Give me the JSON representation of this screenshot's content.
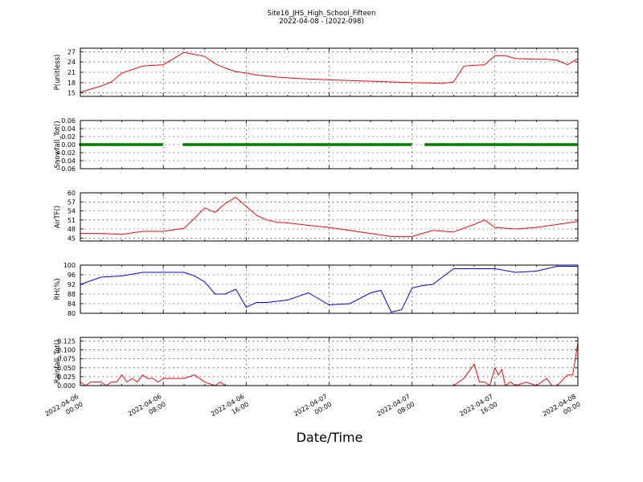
{
  "figure": {
    "title": "Site16_JHS_High_School_Fifteen",
    "subtitle": "2022-04-08 - (2022-098)",
    "xlabel": "Date/Time"
  },
  "chart_data": {
    "type": "line",
    "grid": true,
    "x_range": [
      "2022-04-06 00:00",
      "2022-04-08 00:00"
    ],
    "x_ticks": [
      {
        "value": "2022-04-06 00:00",
        "label": [
          "2022-04-06",
          "00:00"
        ]
      },
      {
        "value": "2022-04-06 08:00",
        "label": [
          "2022-04-06",
          "08:00"
        ]
      },
      {
        "value": "2022-04-06 16:00",
        "label": [
          "2022-04-06",
          "16:00"
        ]
      },
      {
        "value": "2022-04-07 00:00",
        "label": [
          "2022-04-07",
          "00:00"
        ]
      },
      {
        "value": "2022-04-07 08:00",
        "label": [
          "2022-04-07",
          "08:00"
        ]
      },
      {
        "value": "2022-04-07 16:00",
        "label": [
          "2022-04-07",
          "16:00"
        ]
      },
      {
        "value": "2022-04-08 00:00",
        "label": [
          "2022-04-08",
          "00:00"
        ]
      }
    ],
    "panels": [
      {
        "ylabel": "P(unitless)",
        "ylim": [
          14,
          28
        ],
        "yticks": [
          15,
          18,
          21,
          24,
          27
        ],
        "ytick_labels": [
          "15",
          "18",
          "21",
          "24",
          "27"
        ],
        "color": "#ff0000",
        "style": "line",
        "x": [
          "2022-04-06 00:00",
          "2022-04-06 02:00",
          "2022-04-06 03:00",
          "2022-04-06 04:00",
          "2022-04-06 05:00",
          "2022-04-06 06:00",
          "2022-04-06 07:00",
          "2022-04-06 08:00",
          "2022-04-06 09:00",
          "2022-04-06 10:00",
          "2022-04-06 11:00",
          "2022-04-06 12:00",
          "2022-04-06 13:00",
          "2022-04-06 14:00",
          "2022-04-06 15:00",
          "2022-04-06 16:00",
          "2022-04-06 17:00",
          "2022-04-06 19:00",
          "2022-04-06 21:00",
          "2022-04-07 00:00",
          "2022-04-07 04:00",
          "2022-04-07 08:00",
          "2022-04-07 11:00",
          "2022-04-07 12:00",
          "2022-04-07 13:00",
          "2022-04-07 14:00",
          "2022-04-07 15:00",
          "2022-04-07 16:00",
          "2022-04-07 17:00",
          "2022-04-07 18:00",
          "2022-04-07 20:00",
          "2022-04-07 21:00",
          "2022-04-07 22:00",
          "2022-04-07 23:00",
          "2022-04-08 00:00"
        ],
        "y": [
          15.2,
          17.0,
          18.2,
          20.8,
          21.8,
          22.8,
          23.0,
          23.2,
          25.0,
          26.8,
          26.2,
          25.6,
          23.5,
          22.2,
          21.2,
          20.8,
          20.2,
          19.6,
          19.2,
          18.8,
          18.4,
          18.0,
          17.8,
          18.2,
          22.8,
          23.0,
          23.2,
          25.8,
          25.8,
          25.0,
          24.8,
          24.8,
          24.5,
          23.2,
          25.0
        ]
      },
      {
        "ylabel": "Snowfall_Tot()",
        "ylim": [
          -0.06,
          0.06
        ],
        "yticks": [
          -0.06,
          -0.04,
          -0.02,
          0.0,
          0.02,
          0.04,
          0.06
        ],
        "ytick_labels": [
          "−0.06",
          "−0.04",
          "−0.02",
          "0.00",
          "0.02",
          "0.04",
          "0.06"
        ],
        "color": "#008000",
        "style": "dots",
        "segments": [
          {
            "x_start": "2022-04-06 00:00",
            "x_end": "2022-04-06 08:00",
            "y": 0.0
          },
          {
            "x_start": "2022-04-06 10:00",
            "x_end": "2022-04-07 08:00",
            "y": 0.0
          },
          {
            "x_start": "2022-04-07 09:20",
            "x_end": "2022-04-08 00:00",
            "y": 0.0
          }
        ]
      },
      {
        "ylabel": "AirTF()",
        "ylim": [
          44,
          60
        ],
        "yticks": [
          45,
          48,
          51,
          54,
          57,
          60
        ],
        "ytick_labels": [
          "45",
          "48",
          "51",
          "54",
          "57",
          "60"
        ],
        "color": "#ff0000",
        "style": "line",
        "x": [
          "2022-04-06 00:00",
          "2022-04-06 02:00",
          "2022-04-06 04:00",
          "2022-04-06 06:00",
          "2022-04-06 08:00",
          "2022-04-06 10:00",
          "2022-04-06 11:00",
          "2022-04-06 12:00",
          "2022-04-06 13:00",
          "2022-04-06 14:00",
          "2022-04-06 15:00",
          "2022-04-06 16:00",
          "2022-04-06 17:00",
          "2022-04-06 18:00",
          "2022-04-06 19:00",
          "2022-04-06 20:00",
          "2022-04-06 22:00",
          "2022-04-07 00:00",
          "2022-04-07 02:00",
          "2022-04-07 04:00",
          "2022-04-07 06:00",
          "2022-04-07 08:00",
          "2022-04-07 10:00",
          "2022-04-07 12:00",
          "2022-04-07 14:00",
          "2022-04-07 15:00",
          "2022-04-07 16:00",
          "2022-04-07 18:00",
          "2022-04-07 20:00",
          "2022-04-07 22:00",
          "2022-04-08 00:00"
        ],
        "y": [
          46.5,
          46.5,
          46.2,
          47.2,
          47.2,
          48.2,
          51.5,
          55.0,
          53.5,
          56.5,
          58.5,
          55.5,
          52.5,
          51.0,
          50.2,
          50.0,
          49.2,
          48.5,
          47.5,
          46.5,
          45.5,
          45.5,
          47.5,
          47.0,
          49.5,
          51.0,
          48.5,
          48.0,
          48.5,
          49.5,
          50.5
        ]
      },
      {
        "ylabel": "RH(%)",
        "ylim": [
          80,
          100
        ],
        "yticks": [
          80,
          84,
          88,
          92,
          96,
          100
        ],
        "ytick_labels": [
          "80",
          "84",
          "88",
          "92",
          "96",
          "100"
        ],
        "color": "#0000ff",
        "style": "line",
        "x": [
          "2022-04-06 00:00",
          "2022-04-06 02:00",
          "2022-04-06 04:00",
          "2022-04-06 06:00",
          "2022-04-06 08:00",
          "2022-04-06 10:00",
          "2022-04-06 11:00",
          "2022-04-06 12:00",
          "2022-04-06 13:00",
          "2022-04-06 14:00",
          "2022-04-06 15:00",
          "2022-04-06 16:00",
          "2022-04-06 17:00",
          "2022-04-06 18:00",
          "2022-04-06 20:00",
          "2022-04-06 22:00",
          "2022-04-07 00:00",
          "2022-04-07 02:00",
          "2022-04-07 04:00",
          "2022-04-07 05:00",
          "2022-04-07 06:00",
          "2022-04-07 07:00",
          "2022-04-07 08:00",
          "2022-04-07 09:00",
          "2022-04-07 10:00",
          "2022-04-07 12:00",
          "2022-04-07 14:00",
          "2022-04-07 16:00",
          "2022-04-07 18:00",
          "2022-04-07 20:00",
          "2022-04-07 22:00",
          "2022-04-08 00:00"
        ],
        "y": [
          92.0,
          95.0,
          95.5,
          97.0,
          97.0,
          97.0,
          95.5,
          93.0,
          88.0,
          88.0,
          90.0,
          82.5,
          84.5,
          84.5,
          85.5,
          88.5,
          83.5,
          84.0,
          88.5,
          89.5,
          80.5,
          81.5,
          90.5,
          91.5,
          92.0,
          98.5,
          98.5,
          98.5,
          97.0,
          97.5,
          99.5,
          99.5
        ]
      },
      {
        "ylabel": "Rainfall_Tot()",
        "ylim": [
          0.0,
          0.135
        ],
        "yticks": [
          0.0,
          0.025,
          0.05,
          0.075,
          0.1,
          0.125
        ],
        "ytick_labels": [
          "0.000",
          "0.025",
          "0.050",
          "0.075",
          "0.100",
          "0.125"
        ],
        "color": "#ff0000",
        "style": "line",
        "x": [
          "2022-04-06 00:00",
          "2022-04-06 00:30",
          "2022-04-06 01:00",
          "2022-04-06 02:00",
          "2022-04-06 02:30",
          "2022-04-06 03:00",
          "2022-04-06 03:30",
          "2022-04-06 04:00",
          "2022-04-06 04:30",
          "2022-04-06 05:00",
          "2022-04-06 05:30",
          "2022-04-06 06:00",
          "2022-04-06 06:30",
          "2022-04-06 07:00",
          "2022-04-06 07:30",
          "2022-04-06 08:00",
          "2022-04-06 10:00",
          "2022-04-06 11:00",
          "2022-04-06 12:00",
          "2022-04-06 13:00",
          "2022-04-06 13:30",
          "2022-04-06 14:00",
          "2022-04-06 20:00",
          "2022-04-07 04:00",
          "2022-04-07 12:00",
          "2022-04-07 13:00",
          "2022-04-07 14:00",
          "2022-04-07 14:30",
          "2022-04-07 15:00",
          "2022-04-07 15:30",
          "2022-04-07 16:00",
          "2022-04-07 16:20",
          "2022-04-07 16:40",
          "2022-04-07 17:00",
          "2022-04-07 17:30",
          "2022-04-07 18:00",
          "2022-04-07 19:00",
          "2022-04-07 20:00",
          "2022-04-07 21:00",
          "2022-04-07 21:30",
          "2022-04-07 22:00",
          "2022-04-07 23:00",
          "2022-04-07 23:30",
          "2022-04-08 00:00"
        ],
        "y": [
          0.01,
          0.0,
          0.01,
          0.01,
          0.0,
          0.01,
          0.01,
          0.03,
          0.01,
          0.02,
          0.01,
          0.03,
          0.02,
          0.02,
          0.01,
          0.02,
          0.02,
          0.03,
          0.01,
          0.0,
          0.01,
          0.0,
          0.0,
          0.0,
          0.0,
          0.02,
          0.06,
          0.01,
          0.01,
          0.0,
          0.05,
          0.03,
          0.045,
          0.0,
          0.01,
          0.0,
          0.01,
          0.0,
          0.02,
          0.0,
          0.0,
          0.03,
          0.03,
          0.12
        ]
      }
    ]
  }
}
